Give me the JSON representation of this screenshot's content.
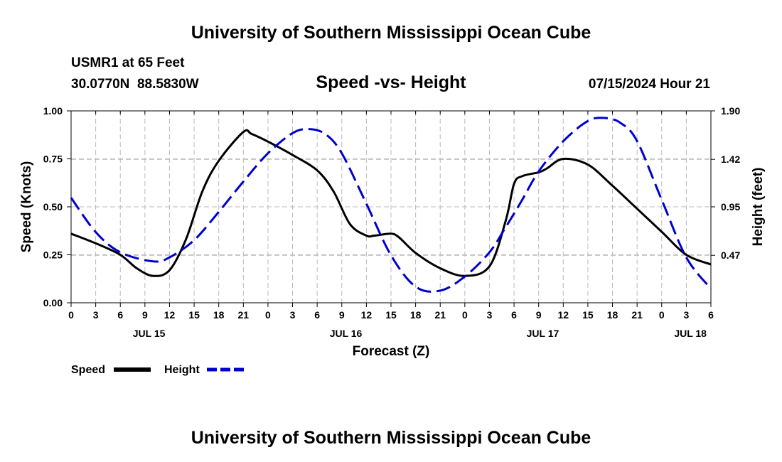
{
  "header": {
    "title": "University of Southern Mississippi Ocean Cube",
    "station": "USMR1 at 65 Feet",
    "coords": "30.0770N  88.5830W",
    "chart_title": "Speed -vs- Height",
    "datetime": "07/15/2024 Hour 21"
  },
  "footer": {
    "title": "University of Southern Mississippi Ocean Cube"
  },
  "legend": {
    "speed": "Speed",
    "height": "Height"
  },
  "colors": {
    "speed": "#000000",
    "height": "#0000cc",
    "grid": "#bbbbbb"
  },
  "chart_data": {
    "type": "line",
    "title": "Speed -vs- Height",
    "xlabel": "Forecast (Z)",
    "ylabel": "Speed (Knots)",
    "y2label": "Height (feet)",
    "xlim": [
      0,
      78
    ],
    "ylim": [
      0,
      1.0
    ],
    "y2lim": [
      0,
      1.9
    ],
    "x_ticks": [
      0,
      3,
      6,
      9,
      12,
      15,
      18,
      21,
      24,
      27,
      30,
      33,
      36,
      39,
      42,
      45,
      48,
      51,
      54,
      57,
      60,
      63,
      66,
      69,
      72,
      75,
      78
    ],
    "x_tick_labels": [
      "0",
      "3",
      "6",
      "9",
      "12",
      "15",
      "18",
      "21",
      "0",
      "3",
      "6",
      "9",
      "12",
      "15",
      "18",
      "21",
      "0",
      "3",
      "6",
      "9",
      "12",
      "15",
      "18",
      "21",
      "0",
      "3",
      "6"
    ],
    "date_labels": [
      {
        "label": "JUL 15",
        "x": 9.5
      },
      {
        "label": "JUL 16",
        "x": 33.5
      },
      {
        "label": "JUL 17",
        "x": 57.5
      },
      {
        "label": "JUL 18",
        "x": 75.5
      }
    ],
    "y_ticks": [
      0,
      0.25,
      0.5,
      0.75,
      1.0
    ],
    "y_tick_labels": [
      "0.00",
      "0.25",
      "0.50",
      "0.75",
      "1.00"
    ],
    "y2_ticks": [
      0.47,
      0.95,
      1.42,
      1.9
    ],
    "y2_tick_labels": [
      "0.47",
      "0.95",
      "1.42",
      "1.90"
    ],
    "series": [
      {
        "name": "Speed",
        "axis": "left",
        "x": [
          0,
          3,
          6,
          8,
          10,
          12,
          14,
          16,
          18,
          21,
          22,
          24,
          27,
          30,
          32,
          34,
          36,
          37,
          39,
          40,
          42,
          45,
          48,
          51,
          53,
          54,
          55,
          57,
          58,
          60,
          63,
          66,
          69,
          72,
          75,
          78
        ],
        "y": [
          0.36,
          0.31,
          0.25,
          0.18,
          0.14,
          0.17,
          0.33,
          0.58,
          0.74,
          0.89,
          0.88,
          0.84,
          0.77,
          0.69,
          0.58,
          0.41,
          0.35,
          0.35,
          0.36,
          0.34,
          0.26,
          0.18,
          0.14,
          0.19,
          0.43,
          0.62,
          0.66,
          0.68,
          0.7,
          0.75,
          0.72,
          0.61,
          0.49,
          0.37,
          0.25,
          0.2
        ]
      },
      {
        "name": "Height",
        "axis": "right",
        "x": [
          0,
          3,
          6,
          10,
          12,
          15,
          18,
          21,
          24,
          27,
          29,
          31,
          33,
          36,
          39,
          42,
          45,
          48,
          51,
          53,
          55,
          57,
          60,
          63,
          65,
          67,
          69,
          72,
          75,
          78
        ],
        "y": [
          1.04,
          0.7,
          0.5,
          0.41,
          0.45,
          0.62,
          0.9,
          1.2,
          1.48,
          1.68,
          1.72,
          1.67,
          1.48,
          0.98,
          0.47,
          0.16,
          0.12,
          0.26,
          0.5,
          0.75,
          1.02,
          1.3,
          1.6,
          1.8,
          1.83,
          1.78,
          1.6,
          1.02,
          0.45,
          0.14
        ]
      }
    ]
  }
}
